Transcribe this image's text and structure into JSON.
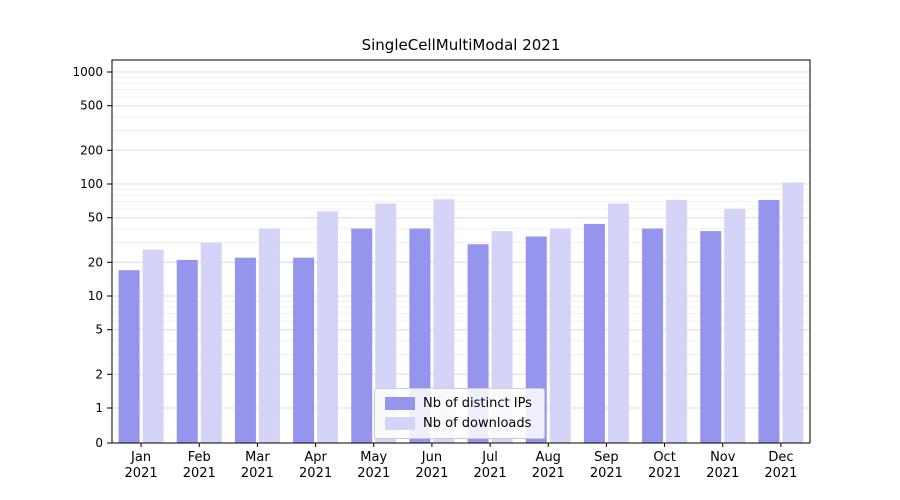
{
  "chart_data": {
    "type": "bar",
    "title": "SingleCellMultiModal 2021",
    "categories": [
      "Jan",
      "Feb",
      "Mar",
      "Apr",
      "May",
      "Jun",
      "Jul",
      "Aug",
      "Sep",
      "Oct",
      "Nov",
      "Dec"
    ],
    "category_year": "2021",
    "series": [
      {
        "name": "Nb of distinct IPs",
        "color": "#9595ee",
        "values": [
          17,
          21,
          22,
          22,
          40,
          40,
          29,
          34,
          44,
          40,
          38,
          72
        ]
      },
      {
        "name": "Nb of downloads",
        "color": "#d4d4f8",
        "values": [
          26,
          30,
          40,
          57,
          67,
          73,
          38,
          40,
          67,
          72,
          60,
          103
        ]
      }
    ],
    "y_ticks": [
      0,
      1,
      2,
      5,
      10,
      20,
      50,
      100,
      200,
      500,
      1000
    ],
    "y_scale": "symlog",
    "ylim": [
      0,
      1500
    ],
    "grid": true,
    "legend_position": "lower center"
  }
}
